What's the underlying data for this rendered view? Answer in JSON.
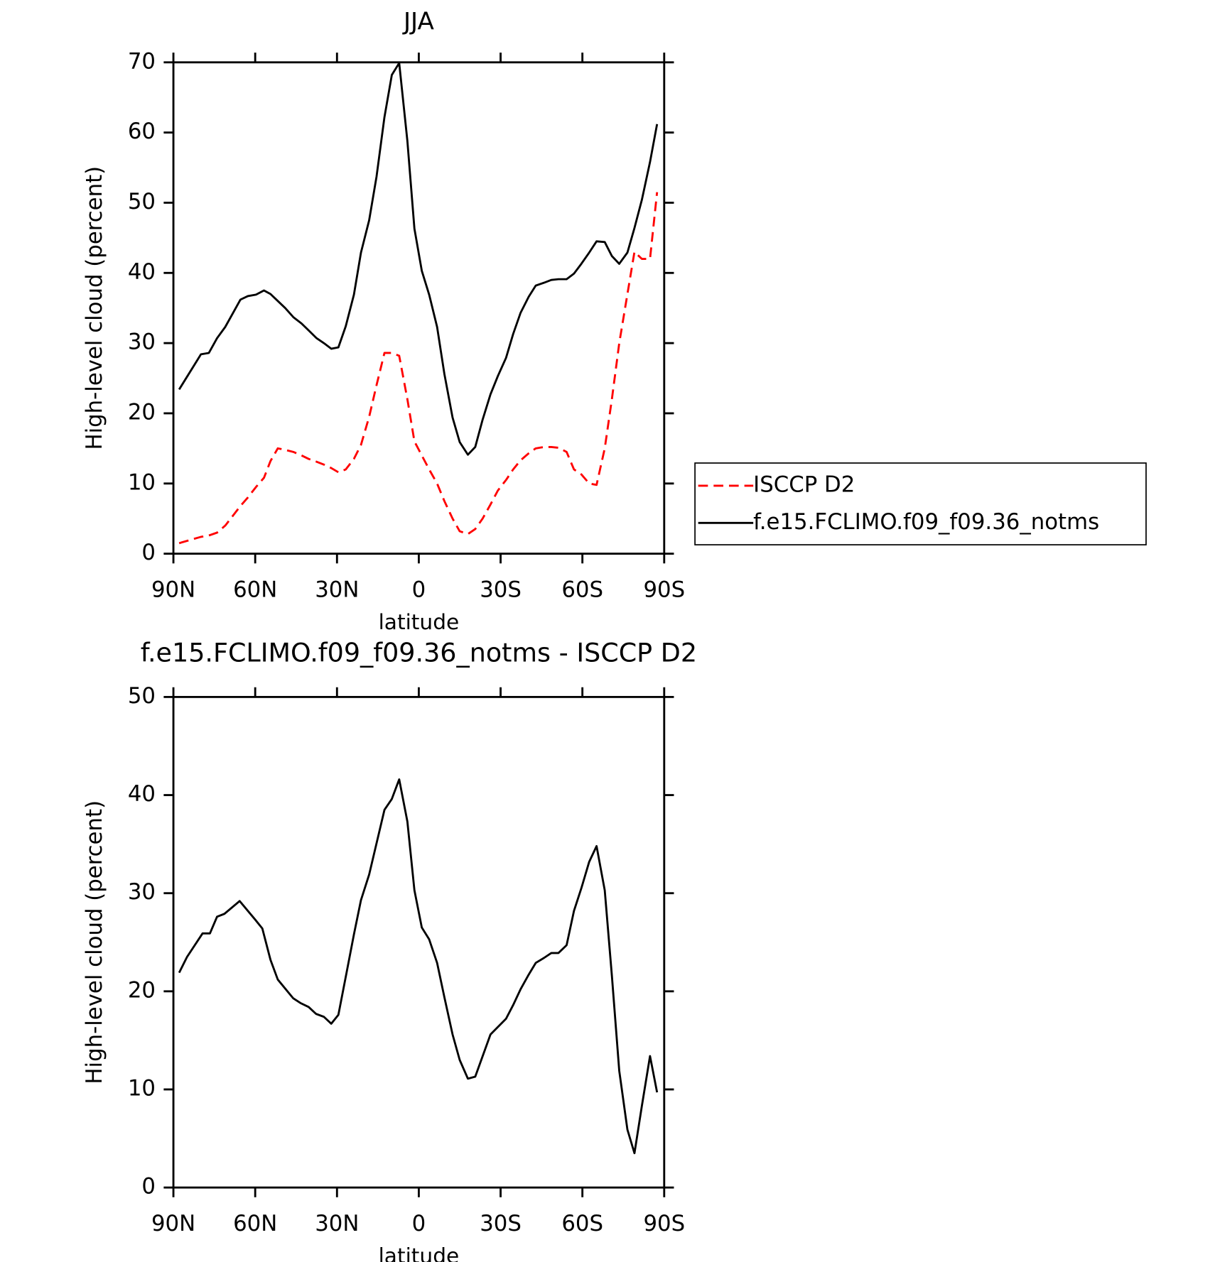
{
  "chart_data": [
    {
      "type": "line",
      "title": "JJA",
      "xlabel": "latitude",
      "ylabel": "High-level cloud (percent)",
      "xlim": [
        90,
        -90
      ],
      "xticks": [
        {
          "value": 90,
          "label": "90N"
        },
        {
          "value": 60,
          "label": "60N"
        },
        {
          "value": 30,
          "label": "30N"
        },
        0,
        {
          "value": -30,
          "label": "30S"
        },
        {
          "value": -60,
          "label": "60S"
        },
        {
          "value": -90,
          "label": "90S"
        }
      ],
      "ylim": [
        0,
        70
      ],
      "yticks": [
        0,
        10,
        20,
        30,
        40,
        50,
        60,
        70
      ],
      "legend": "right",
      "x": [
        87.9,
        79.9,
        77,
        74,
        71,
        68,
        65.4,
        62.7,
        59.7,
        56.8,
        54.4,
        51.7,
        49,
        46,
        43,
        40.4,
        37.5,
        34.8,
        32.1,
        29.5,
        26.8,
        23.8,
        21.2,
        18.2,
        15.5,
        12.6,
        9.9,
        7.2,
        4.2,
        1.6,
        -1.1,
        -3.8,
        -6.7,
        -9.4,
        -12.4,
        -15,
        -18,
        -20.7,
        -23.4,
        -26.3,
        -29,
        -32,
        -34.6,
        -37.3,
        -40.3,
        -42.9,
        -45.9,
        -48.6,
        -51.2,
        -54.2,
        -56.9,
        -59.6,
        -62.5,
        -65.2,
        -68.2,
        -70.8,
        -73.5,
        -76.5,
        -79.1,
        -81.8,
        -84.8,
        -87.4
      ],
      "series": [
        {
          "name": "ISCCP D2",
          "color": "#ff0000",
          "dashed": true,
          "values": [
            1.5,
            2.4,
            2.6,
            3.0,
            4.0,
            5.5,
            6.8,
            8.0,
            9.5,
            10.8,
            13.2,
            15.0,
            14.8,
            14.5,
            14.0,
            13.5,
            13.1,
            12.7,
            12.2,
            11.6,
            12.0,
            13.5,
            15.5,
            19.5,
            24.0,
            28.6,
            28.6,
            28.2,
            22.0,
            16.0,
            14.0,
            12.0,
            10.0,
            7.5,
            5.0,
            3.2,
            2.8,
            3.5,
            5.0,
            7.0,
            9.0,
            10.5,
            12.0,
            13.3,
            14.3,
            15.0,
            15.2,
            15.2,
            15.1,
            14.5,
            12.0,
            11.3,
            10.0,
            9.8,
            15.0,
            22.0,
            30.0,
            37.0,
            43.0,
            42.0,
            42.0,
            51.5
          ]
        },
        {
          "name": "f.e15.FCLIMO.f09_f09.36_notms",
          "color": "#000000",
          "dashed": false,
          "values": [
            23.4,
            28.4,
            28.6,
            30.7,
            32.3,
            34.4,
            36.2,
            36.7,
            36.9,
            37.5,
            37.0,
            36.0,
            35.0,
            33.7,
            32.8,
            31.8,
            30.7,
            30.0,
            29.2,
            29.4,
            32.4,
            36.9,
            42.9,
            47.5,
            53.7,
            62.2,
            68.2,
            69.9,
            58.8,
            46.3,
            40.3,
            36.9,
            32.3,
            25.6,
            19.4,
            15.9,
            14.1,
            15.2,
            19.1,
            22.7,
            25.3,
            27.9,
            31.3,
            34.3,
            36.6,
            38.2,
            38.6,
            39.0,
            39.1,
            39.1,
            39.9,
            41.3,
            42.9,
            44.5,
            44.4,
            42.4,
            41.3,
            42.9,
            46.4,
            50.4,
            55.8,
            61.2
          ]
        }
      ]
    },
    {
      "type": "line",
      "title": "f.e15.FCLIMO.f09_f09.36_notms - ISCCP D2",
      "xlabel": "latitude",
      "ylabel": "High-level cloud (percent)",
      "xlim": [
        90,
        -90
      ],
      "xticks": [
        {
          "value": 90,
          "label": "90N"
        },
        {
          "value": 60,
          "label": "60N"
        },
        {
          "value": 30,
          "label": "30N"
        },
        0,
        {
          "value": -30,
          "label": "30S"
        },
        {
          "value": -60,
          "label": "60S"
        },
        {
          "value": -90,
          "label": "90S"
        }
      ],
      "ylim": [
        0,
        50
      ],
      "yticks": [
        0,
        10,
        20,
        30,
        40,
        50
      ],
      "x": [
        87.9,
        85,
        79.3,
        76.6,
        74,
        71.3,
        65.7,
        60,
        57.4,
        54.4,
        51.7,
        46.1,
        43.4,
        40.4,
        37.7,
        34.8,
        32.1,
        29.5,
        26.5,
        23.8,
        21.2,
        18.2,
        12.6,
        9.9,
        7.2,
        4.2,
        1.6,
        -1.1,
        -3.8,
        -6.7,
        -9.4,
        -12.4,
        -15,
        -18,
        -20.7,
        -26.3,
        -32,
        -34.6,
        -37.3,
        -40.3,
        -42.9,
        -45.9,
        -48.6,
        -51.2,
        -54.2,
        -56.9,
        -59.6,
        -62.5,
        -65.2,
        -68.2,
        -70.8,
        -73.5,
        -76.5,
        -79.1,
        -81.8,
        -84.8,
        -87.4
      ],
      "series": [
        {
          "color": "#000000",
          "dashed": false,
          "values": [
            21.9,
            23.5,
            25.9,
            25.9,
            27.6,
            27.9,
            29.2,
            27.3,
            26.4,
            23.2,
            21.2,
            19.3,
            18.8,
            18.4,
            17.7,
            17.4,
            16.7,
            17.6,
            21.9,
            25.8,
            29.3,
            31.9,
            38.5,
            39.6,
            41.6,
            37.3,
            30.3,
            26.5,
            25.3,
            22.9,
            19.4,
            15.6,
            13.0,
            11.1,
            11.3,
            15.6,
            17.2,
            18.6,
            20.2,
            21.7,
            22.9,
            23.4,
            23.9,
            23.9,
            24.7,
            28.2,
            30.5,
            33.2,
            34.8,
            30.3,
            21.6,
            11.9,
            5.9,
            3.5,
            8.3,
            13.4,
            9.7
          ]
        }
      ]
    }
  ]
}
